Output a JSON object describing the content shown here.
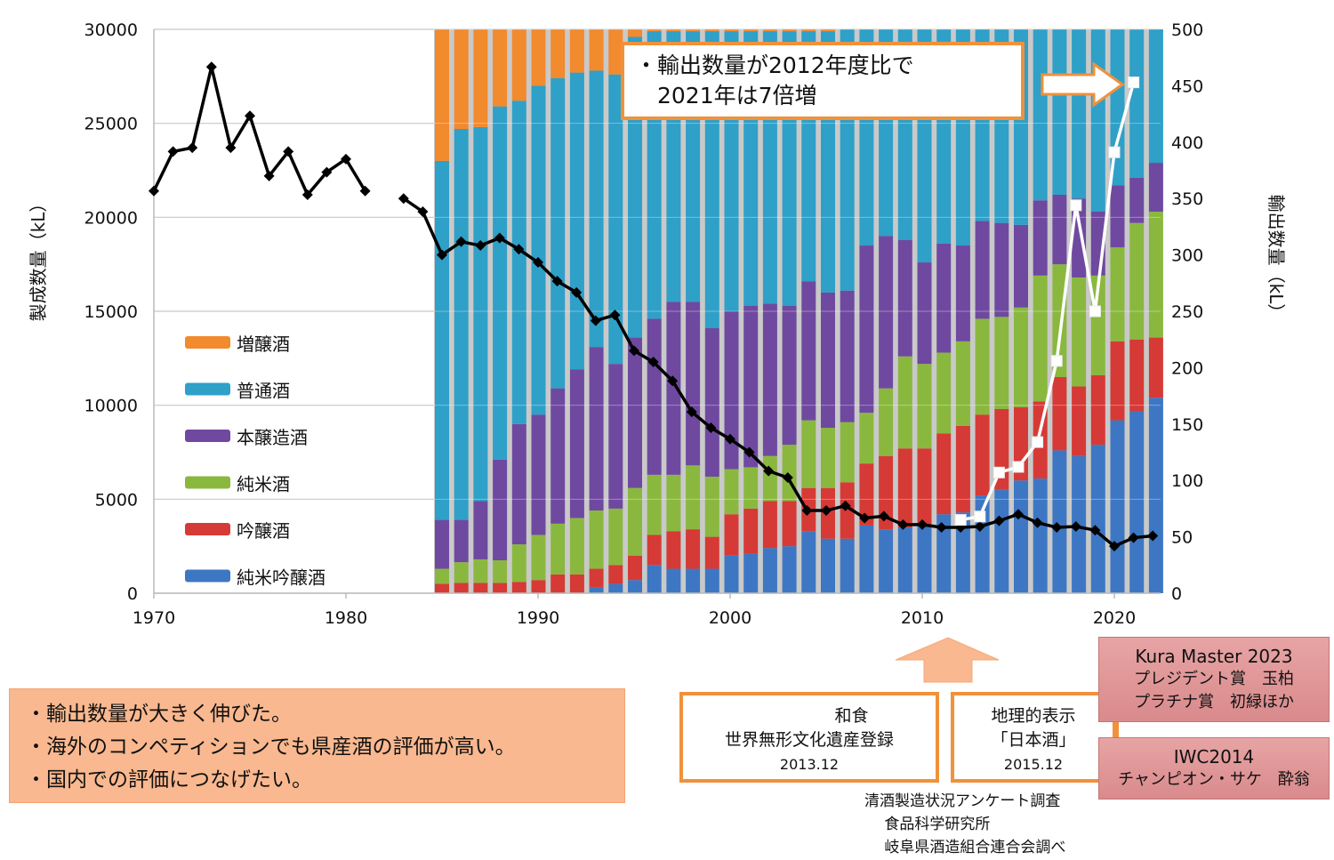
{
  "chart_data": {
    "type": "bar",
    "subtype": "stacked-bar with line overlays",
    "x_axis": {
      "ticks": [
        "1970",
        "1980",
        "1990",
        "2000",
        "2010",
        "2020"
      ],
      "range": [
        1970,
        2022
      ]
    },
    "y_left": {
      "label": "製成数量（kL）",
      "range": [
        0,
        30000
      ],
      "ticks": [
        "0",
        "5000",
        "10000",
        "15000",
        "20000",
        "25000",
        "30000"
      ]
    },
    "y_right": {
      "label": "輸出数量（kL）",
      "range": [
        0,
        500
      ],
      "ticks": [
        "0",
        "50",
        "100",
        "150",
        "200",
        "250",
        "300",
        "350",
        "400",
        "450",
        "500"
      ]
    },
    "grid": true,
    "legend_position": "left-inside",
    "bar_years": [
      1985,
      1986,
      1987,
      1988,
      1989,
      1990,
      1991,
      1992,
      1993,
      1994,
      1995,
      1996,
      1997,
      1998,
      1999,
      2000,
      2001,
      2002,
      2003,
      2004,
      2005,
      2006,
      2007,
      2008,
      2009,
      2010,
      2011,
      2012,
      2013,
      2014,
      2015,
      2016,
      2017,
      2018,
      2019,
      2020,
      2021,
      2022
    ],
    "bar_series_note": "stacked values in left-axis units (kL); plot clipped at 30000",
    "bar_series": [
      {
        "name": "純米吟醸酒",
        "color": "#3d77c4",
        "values": [
          0,
          0,
          0,
          0,
          0,
          0,
          0,
          0,
          300,
          500,
          700,
          1500,
          1300,
          1300,
          1300,
          2000,
          2100,
          2400,
          2500,
          3300,
          2900,
          2900,
          3600,
          3400,
          3500,
          3600,
          4200,
          4300,
          5200,
          5500,
          6000,
          6100,
          7600,
          7300,
          7900,
          9200,
          9700,
          10400
        ]
      },
      {
        "name": "吟醸酒",
        "color": "#d63a36",
        "values": [
          500,
          550,
          550,
          550,
          600,
          700,
          1000,
          1000,
          1000,
          1000,
          1300,
          1600,
          2000,
          2100,
          1700,
          2200,
          2400,
          2500,
          2400,
          2300,
          2700,
          3000,
          3300,
          3900,
          4200,
          4100,
          4300,
          4600,
          4300,
          4300,
          3900,
          4100,
          3900,
          3700,
          3700,
          4200,
          3800,
          3200
        ]
      },
      {
        "name": "純米酒",
        "color": "#8ab83f",
        "values": [
          800,
          1100,
          1250,
          1200,
          2000,
          2400,
          2700,
          3000,
          3100,
          3000,
          3600,
          3200,
          3000,
          3400,
          3200,
          2400,
          2200,
          2400,
          3000,
          3600,
          3200,
          3200,
          2700,
          3600,
          4900,
          4500,
          4300,
          4500,
          5100,
          4900,
          5300,
          6700,
          6000,
          5800,
          5300,
          5000,
          6200,
          6700
        ]
      },
      {
        "name": "本醸造酒",
        "color": "#6f49a0",
        "values": [
          2600,
          2250,
          3100,
          5350,
          6400,
          6400,
          7200,
          7900,
          8700,
          7700,
          8000,
          8300,
          9200,
          8700,
          7900,
          8400,
          8600,
          8100,
          7400,
          7400,
          7200,
          7000,
          8900,
          8100,
          6200,
          5400,
          5800,
          5100,
          5200,
          5000,
          4400,
          4000,
          3700,
          4200,
          3400,
          3300,
          2400,
          2600
        ]
      },
      {
        "name": "普通酒",
        "color": "#2fa0c8",
        "values": [
          19100,
          20800,
          19900,
          18800,
          17200,
          17500,
          16500,
          15800,
          14700,
          15400,
          16000,
          15300,
          14400,
          14400,
          15800,
          14900,
          14600,
          14500,
          14600,
          13300,
          13900,
          13900,
          11500,
          11000,
          11200,
          12400,
          11400,
          11500,
          10200,
          10300,
          10400,
          9100,
          8800,
          9000,
          9700,
          8300,
          7900,
          7100
        ]
      },
      {
        "name": "増醸酒",
        "color": "#f28a2e",
        "values": [
          7000,
          5300,
          5200,
          4100,
          3800,
          3000,
          2600,
          2300,
          2200,
          2400,
          400,
          400,
          400,
          400,
          400,
          400,
          400,
          400,
          400,
          400,
          400,
          0,
          0,
          0,
          0,
          0,
          0,
          0,
          0,
          0,
          0,
          0,
          0,
          0,
          0,
          0,
          0,
          0
        ]
      }
    ],
    "line_series": [
      {
        "name": "製成数量",
        "axis": "left",
        "color": "#000000",
        "marker": "diamond",
        "x": [
          1970,
          1971,
          1972,
          1973,
          1974,
          1975,
          1976,
          1977,
          1978,
          1979,
          1980,
          1981,
          1983,
          1984,
          1985,
          1986,
          1987,
          1988,
          1989,
          1990,
          1991,
          1992,
          1993,
          1994,
          1995,
          1996,
          1997,
          1998,
          1999,
          2000,
          2001,
          2002,
          2003,
          2004,
          2005,
          2006,
          2007,
          2008,
          2009,
          2010,
          2011,
          2012,
          2013,
          2014,
          2015,
          2016,
          2017,
          2018,
          2019,
          2020,
          2021,
          2022
        ],
        "values": [
          21400,
          23500,
          23700,
          28000,
          23700,
          25400,
          22200,
          23500,
          21200,
          22400,
          23100,
          21400,
          21000,
          20300,
          18000,
          18700,
          18500,
          18900,
          18300,
          17600,
          16600,
          16000,
          14500,
          14800,
          12900,
          12300,
          11300,
          9650,
          8800,
          8200,
          7500,
          6500,
          6150,
          4400,
          4400,
          4650,
          4000,
          4100,
          3650,
          3650,
          3500,
          3500,
          3550,
          3850,
          4200,
          3750,
          3500,
          3550,
          3350,
          2500,
          2950,
          3050
        ]
      },
      {
        "name": "輸出数量",
        "axis": "right",
        "color": "#ffffff",
        "marker": "square",
        "x": [
          2012,
          2013,
          2014,
          2015,
          2016,
          2017,
          2018,
          2019,
          2020,
          2021
        ],
        "values": [
          65,
          68,
          107,
          112,
          134,
          206,
          344,
          250,
          391,
          453
        ]
      }
    ],
    "legend": [
      "増醸酒",
      "普通酒",
      "本醸造酒",
      "純米酒",
      "吟醸酒",
      "純米吟醸酒"
    ]
  },
  "callout": {
    "line1": "・輸出数量が2012年度比で",
    "line2": "　2021年は7倍増"
  },
  "summary": {
    "items": [
      "・輸出数量が大きく伸びた。",
      "・海外のコンペティションでも県産酒の評価が高い。",
      "・国内での評価につなげたい。"
    ]
  },
  "events": {
    "washoku": {
      "line1": "　　　　　和食",
      "line2": "世界無形文化遺産登録",
      "line3": "2013.12"
    },
    "gi": {
      "line1": "地理的表示",
      "line2": "「日本酒」",
      "line3": "2015.12"
    }
  },
  "awards": {
    "kura_master": {
      "line1": "Kura Master 2023",
      "line2": "プレジデント賞　玉柏",
      "line3": "プラチナ賞　初緑ほか"
    },
    "iwc": {
      "line1": "IWC2014",
      "line2": "チャンピオン・サケ　酔翁"
    }
  },
  "source": {
    "line1": "清酒製造状況アンケート調査",
    "line2": "　 食品科学研究所",
    "line3": "　 岐阜県酒造組合連合会調べ"
  }
}
